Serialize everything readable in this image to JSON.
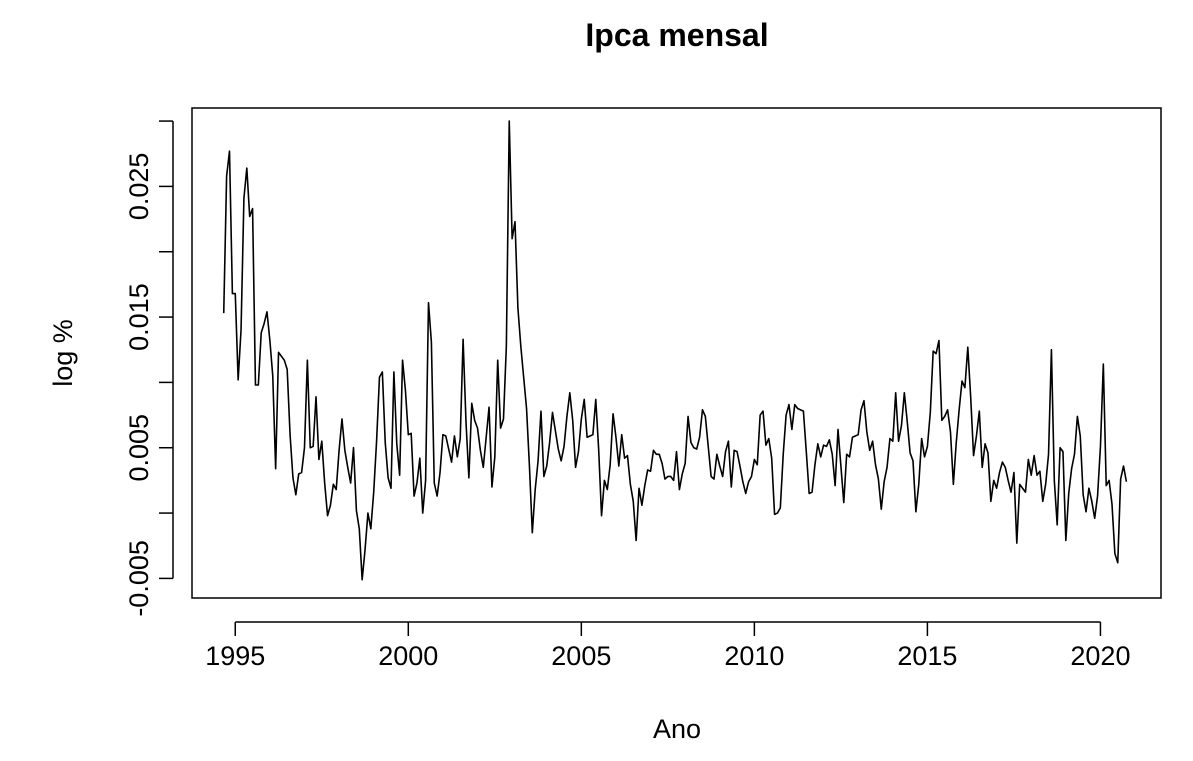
{
  "chart_data": {
    "type": "line",
    "title": "Ipca mensal",
    "xlabel": "Ano",
    "ylabel": "log %",
    "xlim": [
      1993.75,
      2021.75
    ],
    "ylim": [
      -0.0065,
      0.031
    ],
    "x_ticks": [
      1995,
      2000,
      2005,
      2010,
      2015,
      2020
    ],
    "x_tick_labels": [
      "1995",
      "2000",
      "2005",
      "2010",
      "2015",
      "2020"
    ],
    "y_ticks": [
      -0.005,
      0.0,
      0.005,
      0.01,
      0.015,
      0.02,
      0.025,
      0.03
    ],
    "y_tick_labels": [
      "-0.005",
      "",
      "0.005",
      "",
      "0.015",
      "",
      "0.025",
      ""
    ],
    "grid": false,
    "legend": "none",
    "line_color": "#000000",
    "series": [
      {
        "start": 1994.667,
        "step": 0.0833333,
        "values": [
          0.0153,
          0.0258,
          0.0277,
          0.0168,
          0.0168,
          0.0102,
          0.014,
          0.0241,
          0.0264,
          0.0227,
          0.0233,
          0.0098,
          0.0098,
          0.0138,
          0.0145,
          0.0154,
          0.0132,
          0.0105,
          0.0034,
          0.0123,
          0.012,
          0.0117,
          0.011,
          0.006,
          0.0027,
          0.0014,
          0.003,
          0.0031,
          0.005,
          0.0117,
          0.005,
          0.0051,
          0.0089,
          0.0041,
          0.0055,
          0.0023,
          -0.0002,
          0.0006,
          0.0022,
          0.0018,
          0.0048,
          0.0072,
          0.0048,
          0.0035,
          0.0023,
          0.005,
          0.0002,
          -0.0012,
          -0.0051,
          -0.0028,
          0.0,
          -0.0012,
          0.0016,
          0.0055,
          0.0104,
          0.0108,
          0.0054,
          0.0027,
          0.0019,
          0.0108,
          0.0053,
          0.0029,
          0.0117,
          0.0094,
          0.006,
          0.0061,
          0.0013,
          0.0023,
          0.0042,
          0.0,
          0.0025,
          0.0161,
          0.0131,
          0.0023,
          0.0013,
          0.0031,
          0.006,
          0.0059,
          0.0049,
          0.0039,
          0.0059,
          0.0043,
          0.0057,
          0.0133,
          0.007,
          0.0027,
          0.0084,
          0.0071,
          0.0065,
          0.0048,
          0.0035,
          0.0058,
          0.0081,
          0.002,
          0.0043,
          0.0117,
          0.0065,
          0.0072,
          0.0128,
          0.03,
          0.021,
          0.0223,
          0.0157,
          0.0128,
          0.0104,
          0.008,
          0.0036,
          -0.0015,
          0.0018,
          0.004,
          0.0078,
          0.0028,
          0.0036,
          0.0054,
          0.0077,
          0.0063,
          0.0049,
          0.004,
          0.0051,
          0.0074,
          0.0092,
          0.0071,
          0.0035,
          0.0047,
          0.0072,
          0.0087,
          0.0058,
          0.0059,
          0.006,
          0.0087,
          0.0049,
          -0.0002,
          0.0025,
          0.0018,
          0.0037,
          0.0076,
          0.0058,
          0.0036,
          0.006,
          0.0042,
          0.0044,
          0.0022,
          0.0009,
          -0.0021,
          0.0019,
          0.0006,
          0.0021,
          0.0033,
          0.0032,
          0.0048,
          0.0045,
          0.0045,
          0.0038,
          0.0026,
          0.0028,
          0.0028,
          0.0025,
          0.0047,
          0.0018,
          0.003,
          0.0038,
          0.0074,
          0.0054,
          0.005,
          0.0049,
          0.0058,
          0.0079,
          0.0074,
          0.0051,
          0.0028,
          0.0026,
          0.0045,
          0.0036,
          0.0028,
          0.0047,
          0.0055,
          0.002,
          0.0048,
          0.0047,
          0.0036,
          0.0024,
          0.0015,
          0.0024,
          0.0028,
          0.0041,
          0.0037,
          0.0075,
          0.0078,
          0.0052,
          0.0057,
          0.0042,
          -0.0001,
          0.0,
          0.0004,
          0.0045,
          0.0075,
          0.0083,
          0.0064,
          0.0083,
          0.008,
          0.0079,
          0.0078,
          0.0047,
          0.0015,
          0.0016,
          0.0037,
          0.0053,
          0.0043,
          0.0052,
          0.0051,
          0.0056,
          0.0045,
          0.0021,
          0.0064,
          0.0036,
          0.0008,
          0.0045,
          0.0043,
          0.0058,
          0.0059,
          0.006,
          0.0079,
          0.0086,
          0.0062,
          0.0048,
          0.0055,
          0.0037,
          0.0026,
          0.0003,
          0.0024,
          0.0035,
          0.0057,
          0.0055,
          0.0092,
          0.0055,
          0.0067,
          0.0092,
          0.007,
          0.0046,
          0.004,
          0.0001,
          0.0022,
          0.0057,
          0.0043,
          0.0051,
          0.0077,
          0.0124,
          0.0122,
          0.0132,
          0.0071,
          0.0074,
          0.0079,
          0.0062,
          0.0022,
          0.0054,
          0.0079,
          0.0101,
          0.0096,
          0.0127,
          0.0089,
          0.0044,
          0.0059,
          0.0078,
          0.0035,
          0.0053,
          0.0046,
          0.0009,
          0.0025,
          0.0019,
          0.0031,
          0.0039,
          0.0035,
          0.0025,
          0.0016,
          0.0031,
          -0.0023,
          0.0022,
          0.0019,
          0.0016,
          0.0041,
          0.0029,
          0.0044,
          0.0029,
          0.0032,
          0.0009,
          0.0022,
          0.0045,
          0.0125,
          0.0025,
          -0.0009,
          0.005,
          0.0047,
          -0.0021,
          0.0015,
          0.0034,
          0.0045,
          0.0074,
          0.0059,
          0.0014,
          0.0001,
          0.0019,
          0.0009,
          -0.0004,
          0.0013,
          0.0051,
          0.0114,
          0.0021,
          0.0025,
          0.0007,
          -0.0031,
          -0.0038,
          0.0026,
          0.0036,
          0.0024
        ]
      }
    ]
  }
}
